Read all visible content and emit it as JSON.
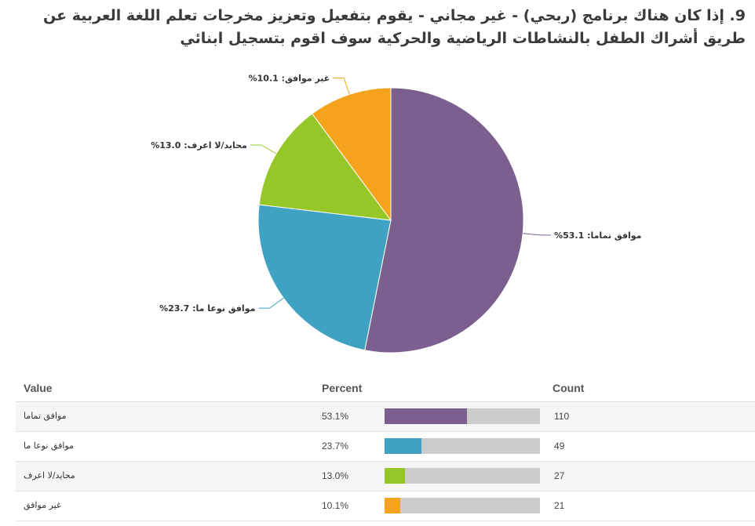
{
  "question": {
    "title": "9. إذا كان هناك برنامج (ربحي) - غير مجاني - يقوم بتفعيل وتعزيز مخرجات تعلم اللغة العربية عن طريق أشراك الطفل بالنشاطات الرياضية والحركية سوف اقوم بتسجيل ابنائي"
  },
  "chart_data": {
    "type": "pie",
    "title": "9. إذا كان هناك برنامج (ربحي) - غير مجاني - يقوم بتفعيل وتعزيز مخرجات تعلم اللغة العربية عن طريق أشراك الطفل بالنشاطات الرياضية والحركية سوف اقوم بتسجيل ابنائي",
    "slices": [
      {
        "label": "موافق تماما",
        "percent": 53.1,
        "count": 110,
        "color": "#7b5f8f",
        "pie_label": "%موافق تماما: 53.1"
      },
      {
        "label": "موافق نوعا ما",
        "percent": 23.7,
        "count": 49,
        "color": "#3fa2c2",
        "pie_label": "%موافق نوعا ما: 23.7"
      },
      {
        "label": "محايد/لا اعرف",
        "percent": 13.0,
        "count": 27,
        "color": "#95c728",
        "pie_label": "%محايد/لا اعرف: 13.0"
      },
      {
        "label": "غير موافق",
        "percent": 10.1,
        "count": 21,
        "color": "#f5a31c",
        "pie_label": "%غير موافق: 10.1"
      }
    ]
  },
  "table": {
    "headers": {
      "value": "Value",
      "percent": "Percent",
      "count": "Count"
    },
    "rows": [
      {
        "value": "موافق تماما",
        "percent": "53.1%",
        "count": "110"
      },
      {
        "value": "موافق نوعا ما",
        "percent": "23.7%",
        "count": "49"
      },
      {
        "value": "محايد/لا اعرف",
        "percent": "13.0%",
        "count": "27"
      },
      {
        "value": "غير موافق",
        "percent": "10.1%",
        "count": "21"
      }
    ]
  }
}
